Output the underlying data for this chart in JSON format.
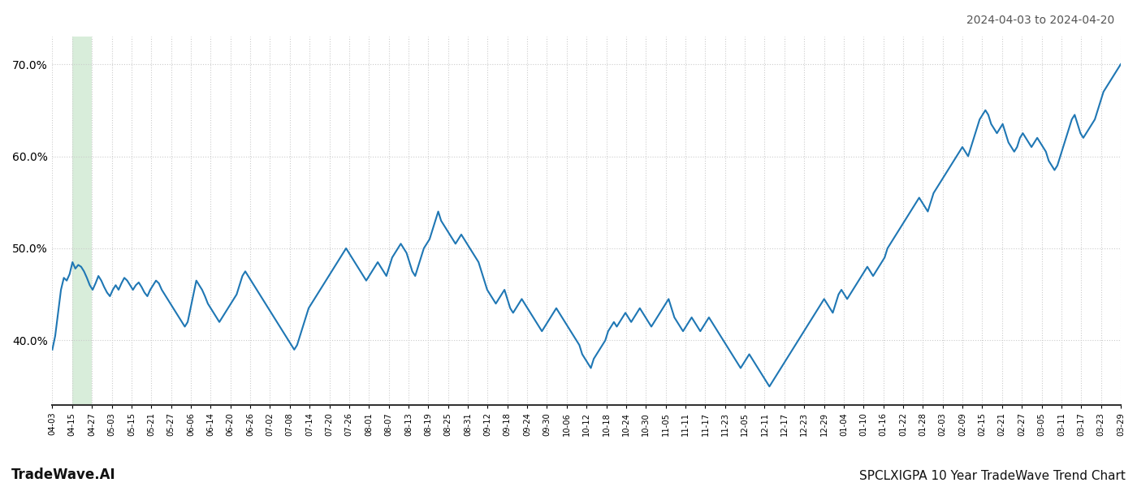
{
  "title_right": "2024-04-03 to 2024-04-20",
  "footer_left": "TradeWave.AI",
  "footer_right": "SPCLXIGPA 10 Year TradeWave Trend Chart",
  "ylim": [
    33,
    73
  ],
  "yticks": [
    40.0,
    50.0,
    60.0,
    70.0
  ],
  "line_color": "#1f77b4",
  "line_width": 1.5,
  "background_color": "#ffffff",
  "grid_color": "#cccccc",
  "highlight_color": "#d8edda",
  "highlight_xstart": 8,
  "highlight_xend": 18,
  "xtick_labels": [
    "04-03",
    "04-15",
    "04-27",
    "05-03",
    "05-15",
    "05-21",
    "05-27",
    "06-06",
    "06-14",
    "06-20",
    "06-26",
    "07-02",
    "07-08",
    "07-14",
    "07-20",
    "07-26",
    "08-01",
    "08-07",
    "08-13",
    "08-19",
    "08-25",
    "08-31",
    "09-12",
    "09-18",
    "09-24",
    "09-30",
    "10-06",
    "10-12",
    "10-18",
    "10-24",
    "10-30",
    "11-05",
    "11-11",
    "11-17",
    "11-23",
    "12-05",
    "12-11",
    "12-17",
    "12-23",
    "12-29",
    "01-04",
    "01-10",
    "01-16",
    "01-22",
    "01-28",
    "02-03",
    "02-09",
    "02-15",
    "02-21",
    "02-27",
    "03-05",
    "03-11",
    "03-17",
    "03-23",
    "03-29"
  ],
  "values": [
    39.0,
    40.5,
    43.0,
    45.5,
    46.8,
    46.5,
    47.2,
    48.5,
    47.8,
    48.2,
    48.0,
    47.5,
    46.8,
    46.0,
    45.5,
    46.2,
    47.0,
    46.5,
    45.8,
    45.2,
    44.8,
    45.5,
    46.0,
    45.5,
    46.2,
    46.8,
    46.5,
    46.0,
    45.5,
    46.0,
    46.3,
    45.8,
    45.2,
    44.8,
    45.5,
    46.0,
    46.5,
    46.2,
    45.5,
    45.0,
    44.5,
    44.0,
    43.5,
    43.0,
    42.5,
    42.0,
    41.5,
    42.0,
    43.5,
    45.0,
    46.5,
    46.0,
    45.5,
    44.8,
    44.0,
    43.5,
    43.0,
    42.5,
    42.0,
    42.5,
    43.0,
    43.5,
    44.0,
    44.5,
    45.0,
    46.0,
    47.0,
    47.5,
    47.0,
    46.5,
    46.0,
    45.5,
    45.0,
    44.5,
    44.0,
    43.5,
    43.0,
    42.5,
    42.0,
    41.5,
    41.0,
    40.5,
    40.0,
    39.5,
    39.0,
    39.5,
    40.5,
    41.5,
    42.5,
    43.5,
    44.0,
    44.5,
    45.0,
    45.5,
    46.0,
    46.5,
    47.0,
    47.5,
    48.0,
    48.5,
    49.0,
    49.5,
    50.0,
    49.5,
    49.0,
    48.5,
    48.0,
    47.5,
    47.0,
    46.5,
    47.0,
    47.5,
    48.0,
    48.5,
    48.0,
    47.5,
    47.0,
    48.0,
    49.0,
    49.5,
    50.0,
    50.5,
    50.0,
    49.5,
    48.5,
    47.5,
    47.0,
    48.0,
    49.0,
    50.0,
    50.5,
    51.0,
    52.0,
    53.0,
    54.0,
    53.0,
    52.5,
    52.0,
    51.5,
    51.0,
    50.5,
    51.0,
    51.5,
    51.0,
    50.5,
    50.0,
    49.5,
    49.0,
    48.5,
    47.5,
    46.5,
    45.5,
    45.0,
    44.5,
    44.0,
    44.5,
    45.0,
    45.5,
    44.5,
    43.5,
    43.0,
    43.5,
    44.0,
    44.5,
    44.0,
    43.5,
    43.0,
    42.5,
    42.0,
    41.5,
    41.0,
    41.5,
    42.0,
    42.5,
    43.0,
    43.5,
    43.0,
    42.5,
    42.0,
    41.5,
    41.0,
    40.5,
    40.0,
    39.5,
    38.5,
    38.0,
    37.5,
    37.0,
    38.0,
    38.5,
    39.0,
    39.5,
    40.0,
    41.0,
    41.5,
    42.0,
    41.5,
    42.0,
    42.5,
    43.0,
    42.5,
    42.0,
    42.5,
    43.0,
    43.5,
    43.0,
    42.5,
    42.0,
    41.5,
    42.0,
    42.5,
    43.0,
    43.5,
    44.0,
    44.5,
    43.5,
    42.5,
    42.0,
    41.5,
    41.0,
    41.5,
    42.0,
    42.5,
    42.0,
    41.5,
    41.0,
    41.5,
    42.0,
    42.5,
    42.0,
    41.5,
    41.0,
    40.5,
    40.0,
    39.5,
    39.0,
    38.5,
    38.0,
    37.5,
    37.0,
    37.5,
    38.0,
    38.5,
    38.0,
    37.5,
    37.0,
    36.5,
    36.0,
    35.5,
    35.0,
    35.5,
    36.0,
    36.5,
    37.0,
    37.5,
    38.0,
    38.5,
    39.0,
    39.5,
    40.0,
    40.5,
    41.0,
    41.5,
    42.0,
    42.5,
    43.0,
    43.5,
    44.0,
    44.5,
    44.0,
    43.5,
    43.0,
    44.0,
    45.0,
    45.5,
    45.0,
    44.5,
    45.0,
    45.5,
    46.0,
    46.5,
    47.0,
    47.5,
    48.0,
    47.5,
    47.0,
    47.5,
    48.0,
    48.5,
    49.0,
    50.0,
    50.5,
    51.0,
    51.5,
    52.0,
    52.5,
    53.0,
    53.5,
    54.0,
    54.5,
    55.0,
    55.5,
    55.0,
    54.5,
    54.0,
    55.0,
    56.0,
    56.5,
    57.0,
    57.5,
    58.0,
    58.5,
    59.0,
    59.5,
    60.0,
    60.5,
    61.0,
    60.5,
    60.0,
    61.0,
    62.0,
    63.0,
    64.0,
    64.5,
    65.0,
    64.5,
    63.5,
    63.0,
    62.5,
    63.0,
    63.5,
    62.5,
    61.5,
    61.0,
    60.5,
    61.0,
    62.0,
    62.5,
    62.0,
    61.5,
    61.0,
    61.5,
    62.0,
    61.5,
    61.0,
    60.5,
    59.5,
    59.0,
    58.5,
    59.0,
    60.0,
    61.0,
    62.0,
    63.0,
    64.0,
    64.5,
    63.5,
    62.5,
    62.0,
    62.5,
    63.0,
    63.5,
    64.0,
    65.0,
    66.0,
    67.0,
    67.5,
    68.0,
    68.5,
    69.0,
    69.5,
    70.0
  ]
}
